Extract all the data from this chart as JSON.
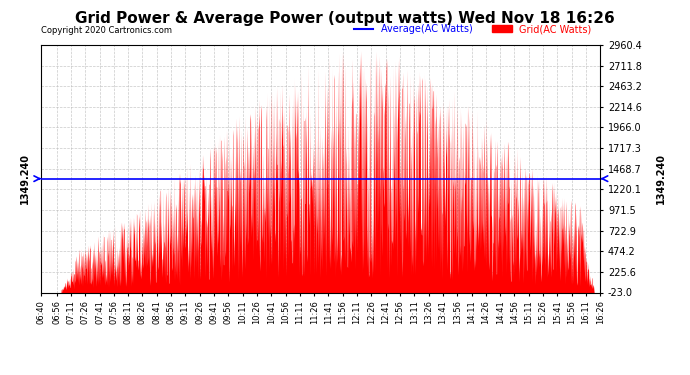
{
  "title": "Grid Power & Average Power (output watts) Wed Nov 18 16:26",
  "copyright": "Copyright 2020 Cartronics.com",
  "y_right_ticks": [
    2960.4,
    2711.8,
    2463.2,
    2214.6,
    1966.0,
    1717.3,
    1468.7,
    1220.1,
    971.5,
    722.9,
    474.2,
    225.6,
    -23.0
  ],
  "average_value": 1349.24,
  "average_label": "1349.240",
  "y_min": -23.0,
  "y_max": 2960.4,
  "legend_avg": "Average(AC Watts)",
  "legend_grid": "Grid(AC Watts)",
  "legend_avg_color": "#0000ff",
  "legend_grid_color": "#ff0000",
  "fill_color": "#ff0000",
  "avg_line_color": "#0000ff",
  "background_color": "#ffffff",
  "grid_color": "#bbbbbb",
  "title_fontsize": 11,
  "time_labels": [
    "06:40",
    "06:56",
    "07:11",
    "07:26",
    "07:41",
    "07:56",
    "08:11",
    "08:26",
    "08:41",
    "08:56",
    "09:11",
    "09:26",
    "09:41",
    "09:56",
    "10:11",
    "10:26",
    "10:41",
    "10:56",
    "11:11",
    "11:26",
    "11:41",
    "11:56",
    "12:11",
    "12:26",
    "12:41",
    "12:56",
    "13:11",
    "13:26",
    "13:41",
    "13:56",
    "14:11",
    "14:26",
    "14:41",
    "14:56",
    "15:11",
    "15:26",
    "15:41",
    "15:56",
    "16:11",
    "16:26"
  ]
}
